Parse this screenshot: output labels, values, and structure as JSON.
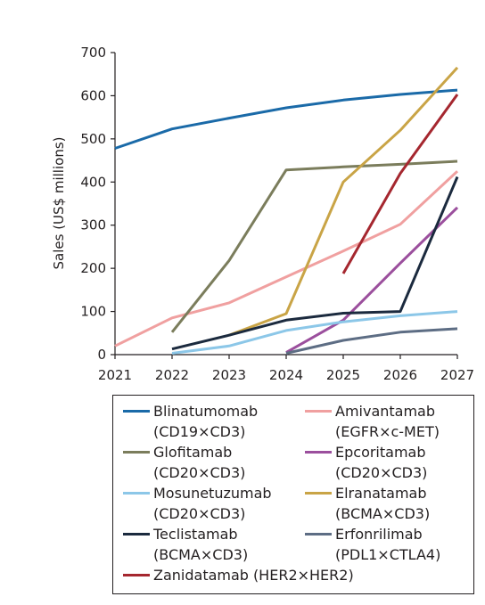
{
  "chart_data": {
    "type": "line",
    "title": "",
    "xlabel": "",
    "ylabel": "Sales (US$ millions)",
    "xlim": [
      2021,
      2027
    ],
    "ylim": [
      0,
      700
    ],
    "x_ticks": [
      "2021",
      "2022",
      "2023",
      "2024",
      "2025",
      "2026",
      "2027"
    ],
    "y_ticks": [
      "0",
      "100",
      "200",
      "300",
      "400",
      "500",
      "600",
      "700"
    ],
    "grid": false,
    "legend_position": "bottom",
    "series": [
      {
        "name": "Blinatumomab",
        "name_sub": "(CD19×CD3)",
        "color": "#1a6aa8",
        "x": [
          2021,
          2022,
          2023,
          2024,
          2025,
          2026,
          2027
        ],
        "y": [
          478,
          523,
          548,
          572,
          590,
          603,
          613
        ]
      },
      {
        "name": "Amivantamab",
        "name_sub": "(EGFR×c-MET)",
        "color": "#f0a0a0",
        "x": [
          2021,
          2022,
          2023,
          2024,
          2025,
          2026,
          2027
        ],
        "y": [
          20,
          85,
          120,
          180,
          240,
          302,
          425
        ]
      },
      {
        "name": "Glofitamab",
        "name_sub": "(CD20×CD3)",
        "color": "#7b7d5c",
        "x": [
          2022,
          2023,
          2024,
          2025,
          2026,
          2027
        ],
        "y": [
          52,
          218,
          428,
          435,
          441,
          448
        ]
      },
      {
        "name": "Epcoritamab",
        "name_sub": "(CD20×CD3)",
        "color": "#9b4f9d",
        "x": [
          2024,
          2025,
          2026,
          2027
        ],
        "y": [
          5,
          80,
          212,
          341
        ]
      },
      {
        "name": "Mosunetuzumab",
        "name_sub": "(CD20×CD3)",
        "color": "#8cc7e8",
        "x": [
          2022,
          2023,
          2024,
          2025,
          2026,
          2027
        ],
        "y": [
          3,
          20,
          56,
          76,
          90,
          100
        ]
      },
      {
        "name": "Elranatamab",
        "name_sub": "(BCMA×CD3)",
        "color": "#c9a446",
        "x": [
          2023,
          2024,
          2025,
          2026,
          2027
        ],
        "y": [
          45,
          95,
          400,
          520,
          665
        ]
      },
      {
        "name": "Teclistamab",
        "name_sub": "(BCMA×CD3)",
        "color": "#1b2a3e",
        "x": [
          2022,
          2023,
          2024,
          2025,
          2026,
          2027
        ],
        "y": [
          13,
          45,
          80,
          96,
          100,
          412
        ]
      },
      {
        "name": "Erfonrilimab",
        "name_sub": "(PDL1×CTLA4)",
        "color": "#5d6d84",
        "x": [
          2024,
          2025,
          2026,
          2027
        ],
        "y": [
          3,
          33,
          52,
          60
        ]
      },
      {
        "name": "Zanidatamab",
        "name_sub": "(HER2×HER2)",
        "color": "#a5272f",
        "x": [
          2025,
          2026,
          2027
        ],
        "y": [
          188,
          420,
          603
        ]
      }
    ]
  }
}
